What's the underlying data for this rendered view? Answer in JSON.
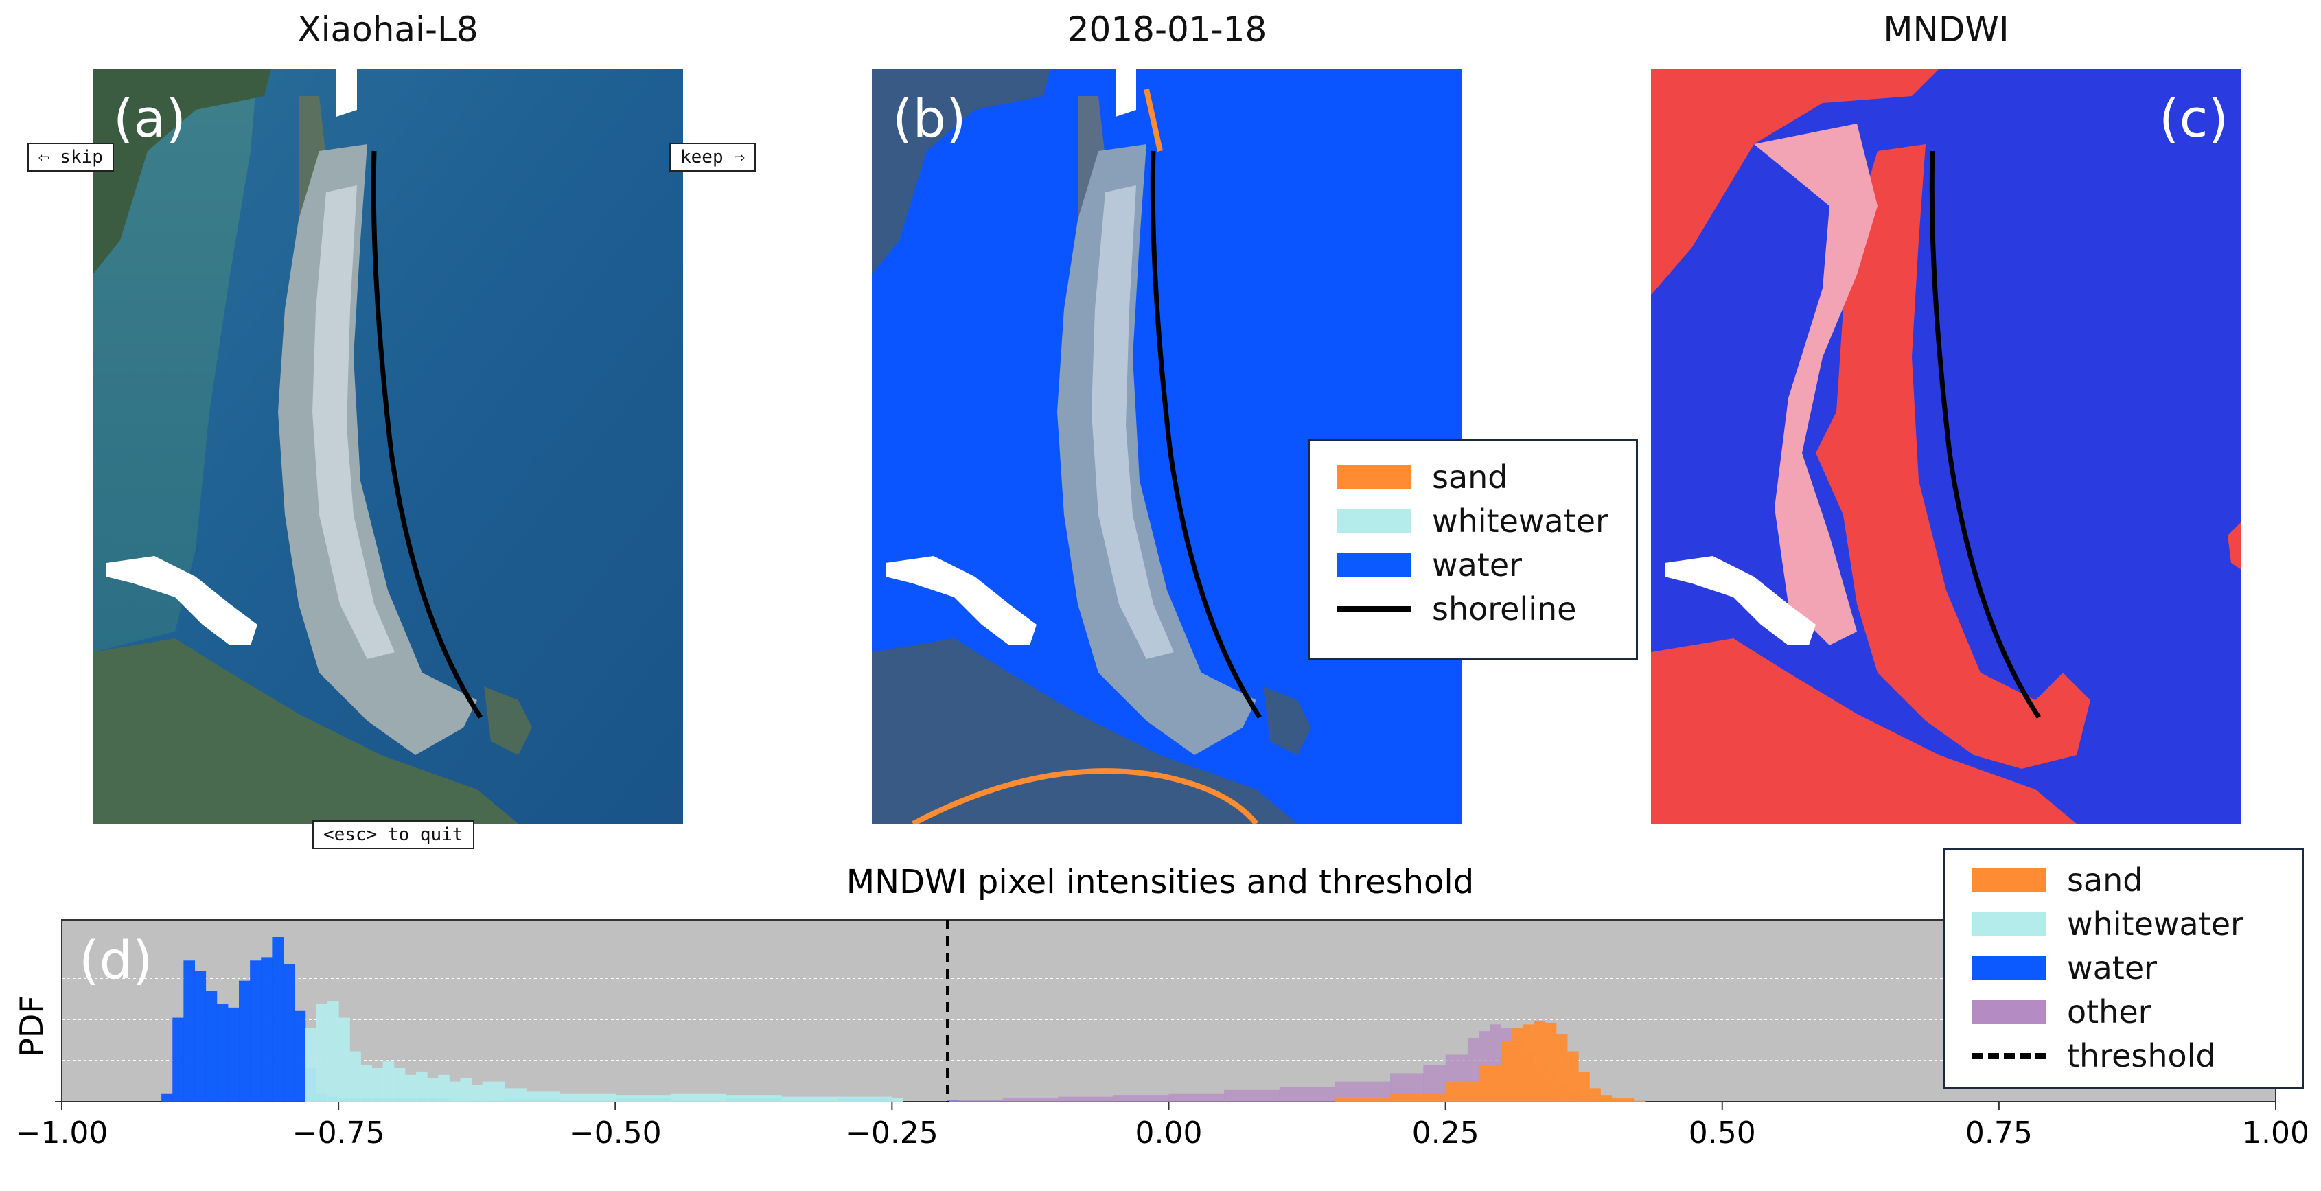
{
  "panels": {
    "a": {
      "title": "Xiaohai-L8",
      "label": "(a)"
    },
    "b": {
      "title": "2018-01-18",
      "label": "(b)"
    },
    "c": {
      "title": "MNDWI",
      "label": "(c)"
    }
  },
  "controls": {
    "skip": "⇦ skip",
    "keep": "keep ⇨",
    "quit": "<esc> to quit"
  },
  "map_legend": [
    {
      "label": "sand",
      "color": "#ff8c32"
    },
    {
      "label": "whitewater",
      "color": "#b4ebeb"
    },
    {
      "label": "water",
      "color": "#0a5aff"
    },
    {
      "label": "shoreline",
      "color": "#000000"
    }
  ],
  "colors": {
    "satellite_sea": "#1e5e92",
    "classified_water": "#0a55ff",
    "mndwi_water": "#2332dc",
    "mndwi_land": "#f04646",
    "histogram_bg": "#c0c0c0"
  },
  "chart_data": {
    "type": "histogram",
    "panel_label": "(d)",
    "title": "MNDWI pixel intensities and threshold",
    "xlabel": "",
    "ylabel": "PDF",
    "xlim": [
      -1.0,
      1.0
    ],
    "xticks": [
      "−1.00",
      "−0.75",
      "−0.50",
      "−0.25",
      "0.00",
      "0.25",
      "0.50",
      "0.75",
      "1.00"
    ],
    "xtick_values": [
      -1.0,
      -0.75,
      -0.5,
      -0.25,
      0.0,
      0.25,
      0.5,
      0.75,
      1.0
    ],
    "threshold": -0.2,
    "grid": true,
    "legend_position": "top-right",
    "series": [
      {
        "name": "water",
        "color": "#0a5aff",
        "x": [
          -0.91,
          -0.9,
          -0.89,
          -0.88,
          -0.87,
          -0.86,
          -0.85,
          -0.84,
          -0.83,
          -0.82,
          -0.81,
          -0.8,
          -0.79,
          -0.78,
          -0.77,
          -0.76,
          -0.75,
          -0.7,
          -0.6,
          -0.5,
          -0.4,
          -0.3,
          -0.2
        ],
        "values": [
          0.05,
          0.5,
          0.84,
          0.78,
          0.66,
          0.58,
          0.56,
          0.72,
          0.84,
          0.86,
          0.98,
          0.82,
          0.54,
          0.2,
          0.05,
          0.03,
          0.02,
          0.02,
          0.015,
          0.02,
          0.02,
          0.02,
          0.01
        ]
      },
      {
        "name": "whitewater",
        "color": "#b4ebeb",
        "x": [
          -0.78,
          -0.77,
          -0.76,
          -0.75,
          -0.74,
          -0.73,
          -0.72,
          -0.71,
          -0.7,
          -0.69,
          -0.68,
          -0.67,
          -0.66,
          -0.65,
          -0.64,
          -0.63,
          -0.62,
          -0.6,
          -0.58,
          -0.55,
          -0.5,
          -0.45,
          -0.4,
          -0.35,
          -0.3,
          -0.25
        ],
        "values": [
          0.44,
          0.58,
          0.6,
          0.5,
          0.3,
          0.22,
          0.2,
          0.24,
          0.2,
          0.16,
          0.18,
          0.14,
          0.16,
          0.12,
          0.14,
          0.1,
          0.12,
          0.08,
          0.06,
          0.05,
          0.04,
          0.05,
          0.04,
          0.03,
          0.03,
          0.02
        ]
      },
      {
        "name": "other",
        "color": "#b48cc3",
        "x": [
          -0.2,
          -0.15,
          -0.1,
          -0.05,
          0.0,
          0.05,
          0.1,
          0.15,
          0.2,
          0.23,
          0.25,
          0.27,
          0.28,
          0.29,
          0.3,
          0.31,
          0.32,
          0.33,
          0.34,
          0.35,
          0.36,
          0.37,
          0.38,
          0.4,
          0.42
        ],
        "values": [
          0.01,
          0.02,
          0.03,
          0.04,
          0.05,
          0.07,
          0.09,
          0.12,
          0.17,
          0.22,
          0.28,
          0.38,
          0.42,
          0.46,
          0.44,
          0.38,
          0.3,
          0.22,
          0.16,
          0.1,
          0.06,
          0.04,
          0.02,
          0.01,
          0.005
        ]
      },
      {
        "name": "sand",
        "color": "#ff8c32",
        "x": [
          0.15,
          0.2,
          0.25,
          0.28,
          0.3,
          0.31,
          0.32,
          0.33,
          0.34,
          0.35,
          0.36,
          0.37,
          0.38,
          0.39,
          0.4,
          0.42
        ],
        "values": [
          0.02,
          0.05,
          0.12,
          0.22,
          0.36,
          0.44,
          0.46,
          0.48,
          0.47,
          0.4,
          0.3,
          0.18,
          0.08,
          0.04,
          0.02,
          0.005
        ]
      }
    ],
    "legend": [
      {
        "label": "sand",
        "color": "#ff8c32",
        "kind": "patch"
      },
      {
        "label": "whitewater",
        "color": "#b4ebeb",
        "kind": "patch"
      },
      {
        "label": "water",
        "color": "#0a5aff",
        "kind": "patch"
      },
      {
        "label": "other",
        "color": "#b48cc3",
        "kind": "patch"
      },
      {
        "label": "threshold",
        "color": "#000000",
        "kind": "dashed"
      }
    ]
  }
}
